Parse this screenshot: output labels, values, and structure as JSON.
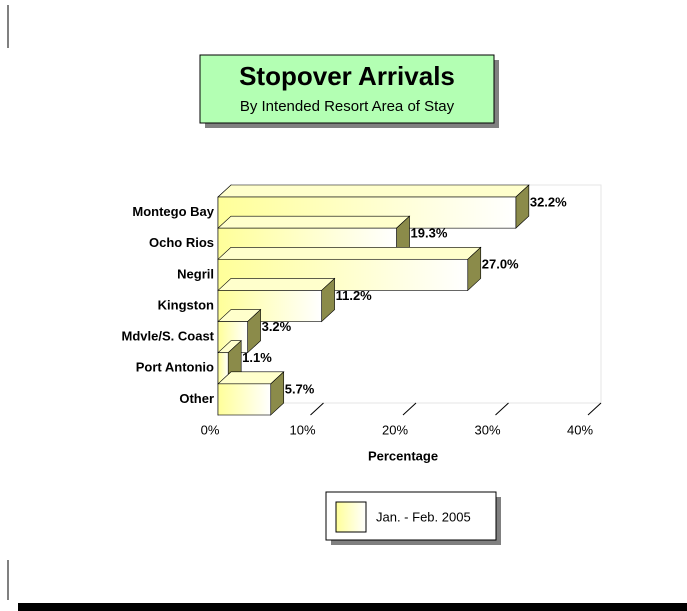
{
  "chart_data": {
    "type": "bar3d_horizontal",
    "title": "Stopover Arrivals",
    "subtitle": "By Intended Resort Area of Stay",
    "categories": [
      "Montego Bay",
      "Ocho Rios",
      "Negril",
      "Kingston",
      "Mdvle/S. Coast",
      "Port Antonio",
      "Other"
    ],
    "series": [
      {
        "name": "Jan. - Feb. 2005",
        "color": "#ffff99",
        "values": [
          32.2,
          19.3,
          27.0,
          11.2,
          3.2,
          1.1,
          5.7
        ],
        "value_labels": [
          "32.2%",
          "19.3%",
          "27.0%",
          "11.2%",
          "3.2%",
          "1.1%",
          "5.7%"
        ]
      }
    ],
    "x_label": "Percentage",
    "xlim": [
      0,
      40
    ],
    "xticks": [
      {
        "value": 0,
        "label": "0%"
      },
      {
        "value": 10,
        "label": "10%"
      },
      {
        "value": 20,
        "label": "20%"
      },
      {
        "value": 30,
        "label": "30%"
      },
      {
        "value": 40,
        "label": "40%"
      }
    ],
    "legend": "bottom"
  }
}
